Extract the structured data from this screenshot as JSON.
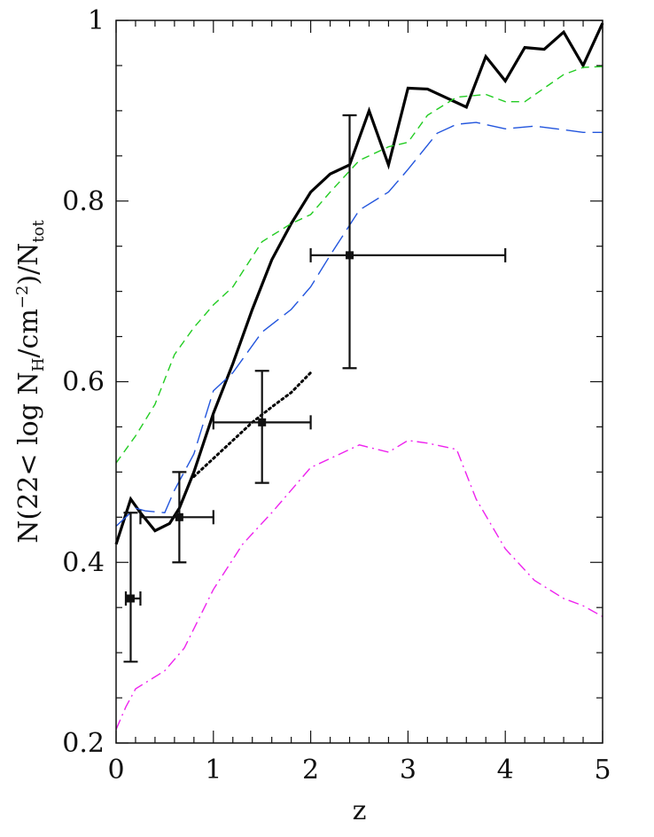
{
  "chart_data": {
    "type": "line",
    "xlabel": "z",
    "ylabel": {
      "prefix": "N(22< log N",
      "sub1": "H",
      "mid": "/cm",
      "sup": "−2",
      "suffix": ")/N",
      "sub2": "tot"
    },
    "xlim": [
      0,
      5
    ],
    "ylim": [
      0.2,
      1.0
    ],
    "x_ticks": [
      "0",
      "1",
      "2",
      "3",
      "4",
      "5"
    ],
    "y_ticks": [
      "0.2",
      "0.4",
      "0.6",
      "0.8",
      "1"
    ],
    "grid": false,
    "series": [
      {
        "style": "solid-thick",
        "color": "#000000",
        "x": [
          0,
          0.15,
          0.25,
          0.4,
          0.55,
          0.65,
          0.8,
          1.0,
          1.2,
          1.4,
          1.6,
          1.8,
          2.0,
          2.2,
          2.4,
          2.6,
          2.8,
          3.0,
          3.2,
          3.4,
          3.6,
          3.8,
          4.0,
          4.2,
          4.4,
          4.6,
          4.8,
          5.0
        ],
        "y": [
          0.42,
          0.47,
          0.455,
          0.435,
          0.443,
          0.46,
          0.5,
          0.565,
          0.62,
          0.68,
          0.735,
          0.775,
          0.81,
          0.83,
          0.84,
          0.9,
          0.84,
          0.925,
          0.924,
          0.914,
          0.904,
          0.96,
          0.933,
          0.97,
          0.968,
          0.987,
          0.95,
          0.997
        ]
      },
      {
        "style": "dashed-short",
        "color": "#22cc22",
        "x": [
          0,
          0.2,
          0.4,
          0.6,
          0.8,
          1.0,
          1.2,
          1.5,
          1.8,
          2.0,
          2.2,
          2.5,
          2.8,
          3.0,
          3.2,
          3.5,
          3.8,
          4.0,
          4.2,
          4.4,
          4.6,
          4.8,
          5.0
        ],
        "y": [
          0.51,
          0.54,
          0.575,
          0.63,
          0.66,
          0.685,
          0.705,
          0.755,
          0.775,
          0.785,
          0.81,
          0.845,
          0.86,
          0.865,
          0.895,
          0.915,
          0.918,
          0.91,
          0.91,
          0.925,
          0.94,
          0.948,
          0.949
        ]
      },
      {
        "style": "dashed-long",
        "color": "#2255dd",
        "x": [
          0,
          0.2,
          0.3,
          0.5,
          0.6,
          0.8,
          1.0,
          1.2,
          1.5,
          1.8,
          2.0,
          2.2,
          2.5,
          2.8,
          3.0,
          3.3,
          3.5,
          3.7,
          4.0,
          4.3,
          4.6,
          4.8,
          5.0
        ],
        "y": [
          0.44,
          0.46,
          0.457,
          0.455,
          0.48,
          0.52,
          0.59,
          0.61,
          0.655,
          0.68,
          0.705,
          0.74,
          0.79,
          0.81,
          0.835,
          0.875,
          0.885,
          0.887,
          0.88,
          0.883,
          0.879,
          0.876,
          0.876
        ]
      },
      {
        "style": "dash-dot",
        "color": "#ee22ee",
        "x": [
          0,
          0.1,
          0.2,
          0.5,
          0.7,
          1.0,
          1.3,
          1.6,
          2.0,
          2.2,
          2.5,
          2.8,
          3.0,
          3.2,
          3.5,
          3.7,
          4.0,
          4.3,
          4.6,
          4.8,
          5.0
        ],
        "y": [
          0.215,
          0.24,
          0.26,
          0.28,
          0.305,
          0.37,
          0.42,
          0.455,
          0.505,
          0.515,
          0.53,
          0.522,
          0.535,
          0.532,
          0.525,
          0.47,
          0.415,
          0.38,
          0.36,
          0.352,
          0.34
        ]
      },
      {
        "style": "dotted",
        "color": "#000000",
        "x": [
          0.8,
          1.0,
          1.2,
          1.4,
          1.6,
          1.8,
          2.0
        ],
        "y": [
          0.495,
          0.515,
          0.535,
          0.555,
          0.572,
          0.588,
          0.61
        ]
      }
    ],
    "points": [
      {
        "x": 0.15,
        "y": 0.36,
        "xerr": [
          0.25,
          0.1
        ],
        "yerr": [
          0.29,
          0.455
        ]
      },
      {
        "x": 0.65,
        "y": 0.45,
        "xerr": [
          0.25,
          1.0
        ],
        "yerr": [
          0.4,
          0.5
        ]
      },
      {
        "x": 1.5,
        "y": 0.555,
        "xerr": [
          1.0,
          2.0
        ],
        "yerr": [
          0.488,
          0.612
        ]
      },
      {
        "x": 2.4,
        "y": 0.74,
        "xerr": [
          2.0,
          4.0
        ],
        "yerr": [
          0.615,
          0.895
        ]
      }
    ]
  }
}
